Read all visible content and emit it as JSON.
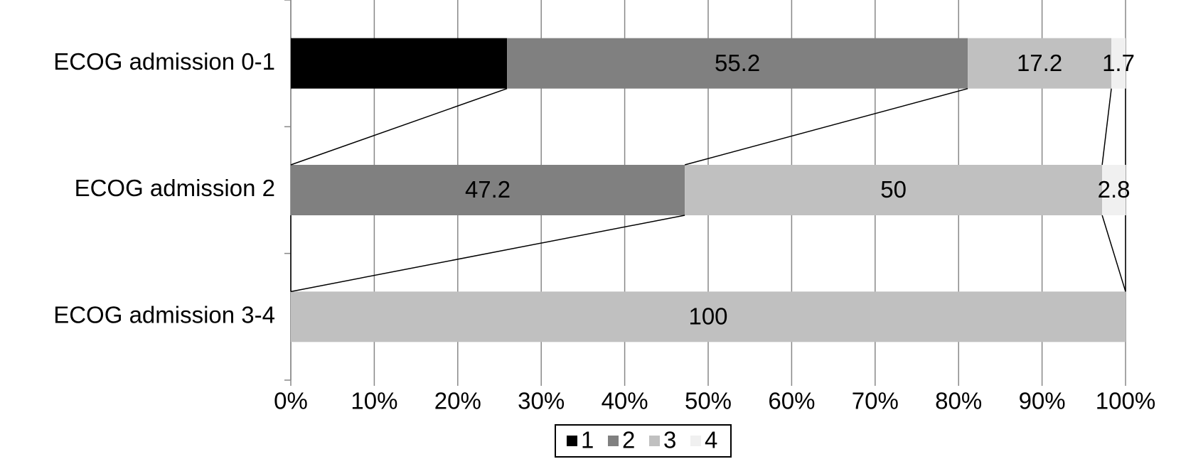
{
  "chart_data": {
    "type": "stacked_barh",
    "categories": [
      "ECOG admission 0-1",
      "ECOG admission 2",
      "ECOG admission 3-4"
    ],
    "series": [
      {
        "name": "1",
        "color": "#000000",
        "values": [
          25.9,
          null,
          null
        ]
      },
      {
        "name": "2",
        "color": "#808080",
        "values": [
          55.2,
          47.2,
          null
        ]
      },
      {
        "name": "3",
        "color": "#c0c0c0",
        "values": [
          17.2,
          50,
          100
        ]
      },
      {
        "name": "4",
        "color": "#f0f0f0",
        "values": [
          1.7,
          2.8,
          null
        ]
      }
    ],
    "xlim": [
      0,
      100
    ],
    "xticks": [
      {
        "value": 0,
        "label": "0%"
      },
      {
        "value": 10,
        "label": "10%"
      },
      {
        "value": 20,
        "label": "20%"
      },
      {
        "value": 30,
        "label": "30%"
      },
      {
        "value": 40,
        "label": "40%"
      },
      {
        "value": 50,
        "label": "50%"
      },
      {
        "value": 60,
        "label": "60%"
      },
      {
        "value": 70,
        "label": "70%"
      },
      {
        "value": 80,
        "label": "80%"
      },
      {
        "value": 90,
        "label": "90%"
      },
      {
        "value": 100,
        "label": "100%"
      }
    ],
    "grid": true,
    "legend": "bottom"
  }
}
